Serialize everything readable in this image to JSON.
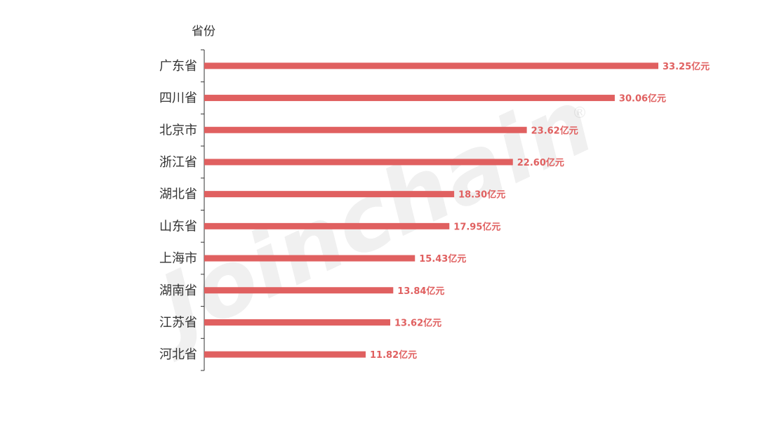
{
  "chart_data": {
    "type": "bar",
    "orientation": "horizontal",
    "y_axis_title": "省份",
    "categories": [
      "广东省",
      "四川省",
      "北京市",
      "浙江省",
      "湖北省",
      "山东省",
      "上海市",
      "湖南省",
      "江苏省",
      "河北省"
    ],
    "values": [
      33.25,
      30.06,
      23.62,
      22.6,
      18.3,
      17.95,
      15.43,
      13.84,
      13.62,
      11.82
    ],
    "value_labels": [
      "33.25亿元",
      "30.06亿元",
      "23.62亿元",
      "22.60亿元",
      "18.30亿元",
      "17.95亿元",
      "15.43亿元",
      "13.84亿元",
      "13.62亿元",
      "11.82亿元"
    ],
    "xlim": [
      0,
      33.25
    ],
    "grid": false,
    "legend": "none",
    "bar_color": "#e06060",
    "label_color": "#e06060"
  },
  "watermark": {
    "text": "Joinchain",
    "mark": "®"
  }
}
